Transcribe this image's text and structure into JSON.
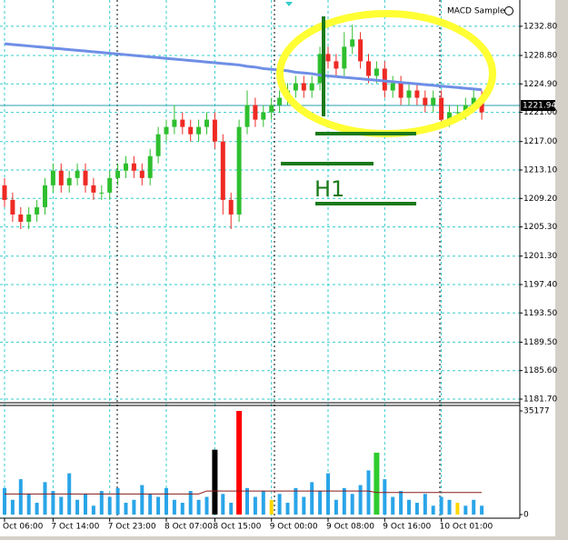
{
  "chart_data": {
    "type": "candlestick",
    "indicator_label": "MACD Sample",
    "annotation": "H1",
    "categories": [
      "Oct 06:00",
      null,
      null,
      null,
      null,
      null,
      "7 Oct 14:00",
      null,
      null,
      null,
      null,
      null,
      null,
      "7 Oct 23:00",
      null,
      null,
      null,
      null,
      null,
      null,
      "8 Oct 07:00",
      null,
      null,
      null,
      null,
      null,
      "8 Oct 15:00",
      null,
      null,
      null,
      null,
      null,
      null,
      "9 Oct 00:00",
      null,
      null,
      null,
      null,
      null,
      null,
      "9 Oct 08:00",
      null,
      null,
      null,
      null,
      null,
      null,
      "9 Oct 16:00",
      null,
      null,
      null,
      null,
      null,
      null,
      "10 Oct 01:00",
      null,
      null,
      null,
      null,
      null
    ],
    "ohlc": [
      [
        1211,
        1212,
        1208,
        1209
      ],
      [
        1209,
        1210,
        1206,
        1207
      ],
      [
        1207,
        1208,
        1205,
        1206
      ],
      [
        1206,
        1208,
        1205,
        1207
      ],
      [
        1207,
        1209,
        1206,
        1208
      ],
      [
        1208,
        1212,
        1207,
        1211
      ],
      [
        1211,
        1214,
        1210,
        1213
      ],
      [
        1213,
        1214,
        1210,
        1211
      ],
      [
        1211,
        1213,
        1210,
        1212
      ],
      [
        1212,
        1214,
        1211,
        1213
      ],
      [
        1213,
        1214,
        1210,
        1211
      ],
      [
        1211,
        1212,
        1209,
        1210
      ],
      [
        1210,
        1211,
        1209,
        1210
      ],
      [
        1210,
        1213,
        1209,
        1212
      ],
      [
        1212,
        1214,
        1211,
        1213
      ],
      [
        1213,
        1215,
        1212,
        1214
      ],
      [
        1214,
        1215,
        1212,
        1213
      ],
      [
        1213,
        1214,
        1211,
        1212
      ],
      [
        1212,
        1216,
        1211,
        1215
      ],
      [
        1215,
        1219,
        1214,
        1218
      ],
      [
        1218,
        1220,
        1217,
        1219
      ],
      [
        1219,
        1222,
        1218,
        1220
      ],
      [
        1220,
        1221,
        1218,
        1219
      ],
      [
        1219,
        1220,
        1217,
        1218
      ],
      [
        1218,
        1220,
        1217,
        1219
      ],
      [
        1219,
        1221,
        1218,
        1220
      ],
      [
        1220,
        1221,
        1216,
        1217
      ],
      [
        1217,
        1218,
        1207,
        1209
      ],
      [
        1209,
        1210,
        1205,
        1207
      ],
      [
        1207,
        1220,
        1206,
        1219
      ],
      [
        1219,
        1224,
        1218,
        1222
      ],
      [
        1222,
        1223,
        1219,
        1220
      ],
      [
        1220,
        1222,
        1219,
        1221
      ],
      [
        1221,
        1223,
        1220,
        1222
      ],
      [
        1222,
        1224,
        1221,
        1223
      ],
      [
        1223,
        1225,
        1222,
        1224
      ],
      [
        1224,
        1226,
        1223,
        1225
      ],
      [
        1225,
        1226,
        1223,
        1224
      ],
      [
        1224,
        1226,
        1223,
        1225
      ],
      [
        1225,
        1230,
        1224,
        1229
      ],
      [
        1229,
        1230,
        1227,
        1228
      ],
      [
        1228,
        1229,
        1226,
        1227
      ],
      [
        1227,
        1232,
        1226,
        1230
      ],
      [
        1230,
        1233,
        1229,
        1231
      ],
      [
        1231,
        1232,
        1227,
        1228
      ],
      [
        1228,
        1229,
        1225,
        1226
      ],
      [
        1226,
        1228,
        1225,
        1227
      ],
      [
        1227,
        1228,
        1223,
        1224
      ],
      [
        1224,
        1226,
        1223,
        1225
      ],
      [
        1225,
        1226,
        1222,
        1223
      ],
      [
        1223,
        1225,
        1222,
        1224
      ],
      [
        1224,
        1225,
        1222,
        1223
      ],
      [
        1223,
        1224,
        1221,
        1222
      ],
      [
        1222,
        1224,
        1221,
        1223
      ],
      [
        1223,
        1224,
        1219,
        1220
      ],
      [
        1220,
        1222,
        1219,
        1221
      ],
      [
        1221,
        1222,
        1220,
        1221
      ],
      [
        1221,
        1223,
        1220,
        1222
      ],
      [
        1222,
        1224,
        1221,
        1223
      ],
      [
        1223,
        1224,
        1220,
        1221
      ]
    ],
    "up_color": "#2fbf2f",
    "down_color": "#ee2a24",
    "ma": [
      1230.4,
      1230.3,
      1230.2,
      1230.1,
      1230.0,
      1229.9,
      1229.8,
      1229.7,
      1229.6,
      1229.5,
      1229.4,
      1229.3,
      1229.2,
      1229.1,
      1229.0,
      1228.9,
      1228.8,
      1228.7,
      1228.6,
      1228.5,
      1228.4,
      1228.3,
      1228.2,
      1228.1,
      1228.0,
      1227.9,
      1227.8,
      1227.7,
      1227.6,
      1227.5,
      1227.3,
      1227.2,
      1227.0,
      1226.9,
      1226.8,
      1226.7,
      1226.5,
      1226.4,
      1226.3,
      1226.1,
      1226.0,
      1225.9,
      1225.8,
      1225.7,
      1225.6,
      1225.5,
      1225.4,
      1225.3,
      1225.2,
      1225.1,
      1225.0,
      1224.9,
      1224.8,
      1224.7,
      1224.6,
      1224.5,
      1224.4,
      1224.3,
      1224.2,
      1224.1
    ],
    "ma_color": "#6f8fe6",
    "ylim": [
      1181.2,
      1236.4
    ],
    "yticks": [
      {
        "value": 1232.8,
        "label": "1232.80"
      },
      {
        "value": 1228.8,
        "label": "1228.80"
      },
      {
        "value": 1224.9,
        "label": "1224.90"
      },
      {
        "value": 1221.0,
        "label": "1221.00"
      },
      {
        "value": 1217.0,
        "label": "1217.00"
      },
      {
        "value": 1213.1,
        "label": "1213.10"
      },
      {
        "value": 1209.2,
        "label": "1209.20"
      },
      {
        "value": 1205.3,
        "label": "1205.30"
      },
      {
        "value": 1201.3,
        "label": "1201.30"
      },
      {
        "value": 1197.4,
        "label": "1197.40"
      },
      {
        "value": 1193.5,
        "label": "1193.50"
      },
      {
        "value": 1189.5,
        "label": "1189.50"
      },
      {
        "value": 1185.6,
        "label": "1185.60"
      },
      {
        "value": 1181.7,
        "label": "1181.70"
      }
    ],
    "price_line": {
      "value": 1221.94,
      "label": "1221.94"
    },
    "volume": {
      "values": [
        9000,
        5000,
        12000,
        7000,
        4000,
        11000,
        8000,
        6000,
        14000,
        5000,
        7000,
        3000,
        8000,
        6000,
        9000,
        4000,
        5000,
        10000,
        7000,
        6000,
        9000,
        5000,
        4000,
        8000,
        5000,
        6000,
        22000,
        7000,
        4000,
        35177,
        9000,
        6000,
        8000,
        5000,
        7000,
        4000,
        9000,
        6000,
        11000,
        8000,
        14000,
        5000,
        9000,
        7000,
        10000,
        15000,
        21000,
        12000,
        6000,
        8000,
        5000,
        4000,
        7000,
        3000,
        6000,
        5000,
        4000,
        3000,
        5000,
        3000
      ],
      "colors": [
        "#2aa5e8",
        "#2aa5e8",
        "#2aa5e8",
        "#2aa5e8",
        "#2aa5e8",
        "#2aa5e8",
        "#2aa5e8",
        "#2aa5e8",
        "#2aa5e8",
        "#2aa5e8",
        "#2aa5e8",
        "#2aa5e8",
        "#2aa5e8",
        "#2aa5e8",
        "#2aa5e8",
        "#2aa5e8",
        "#2aa5e8",
        "#2aa5e8",
        "#2aa5e8",
        "#2aa5e8",
        "#2aa5e8",
        "#2aa5e8",
        "#2aa5e8",
        "#2aa5e8",
        "#2aa5e8",
        "#2aa5e8",
        "#000000",
        "#2aa5e8",
        "#2aa5e8",
        "#ff0000",
        "#2aa5e8",
        "#2aa5e8",
        "#2aa5e8",
        "#ffd700",
        "#2aa5e8",
        "#2aa5e8",
        "#2aa5e8",
        "#2aa5e8",
        "#2aa5e8",
        "#2aa5e8",
        "#2aa5e8",
        "#2aa5e8",
        "#2aa5e8",
        "#2aa5e8",
        "#2aa5e8",
        "#2aa5e8",
        "#2ecc2e",
        "#2aa5e8",
        "#2aa5e8",
        "#2aa5e8",
        "#2aa5e8",
        "#2aa5e8",
        "#2aa5e8",
        "#2aa5e8",
        "#2aa5e8",
        "#2aa5e8",
        "#ffd700",
        "#2aa5e8",
        "#2aa5e8",
        "#2aa5e8"
      ],
      "ma": [
        7000,
        7000,
        7000,
        7000,
        7000,
        7000,
        7000,
        7000,
        7000,
        7000,
        7000,
        7000,
        7000,
        7000,
        7000,
        7000,
        7000,
        7000,
        7000,
        7000,
        7000,
        7000,
        7000,
        7000,
        7000,
        8000,
        8000,
        8000,
        8000,
        8000,
        8000,
        8000,
        8000,
        8000,
        8000,
        8000,
        8000,
        8000,
        8000,
        8000,
        8000,
        8000,
        8000,
        8000,
        8000,
        8000,
        7500,
        7500,
        7500,
        7500,
        7500,
        7500,
        7500,
        7500,
        7500,
        7500,
        7500,
        7500,
        7500,
        7500
      ],
      "ma_color": "#8b1a1a",
      "ylim": [
        0,
        35177
      ],
      "yticks": [
        35177,
        0
      ]
    },
    "grid": true
  }
}
